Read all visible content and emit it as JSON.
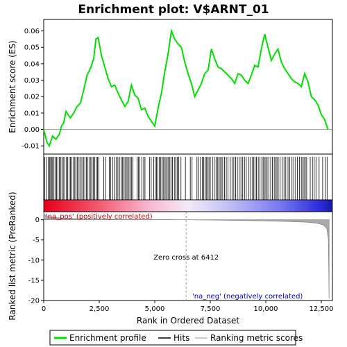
{
  "chart_data": {
    "type": "line",
    "title": "Enrichment plot: V$ARNT_01",
    "top_panel": {
      "ylabel": "Enrichment score (ES)",
      "ylim": [
        -0.015,
        0.067
      ],
      "yticks": [
        "-0.01",
        "0.00",
        "0.01",
        "0.02",
        "0.03",
        "0.04",
        "0.05",
        "0.06"
      ],
      "ytick_values": [
        -0.01,
        0.0,
        0.01,
        0.02,
        0.03,
        0.04,
        0.05,
        0.06
      ],
      "series": [
        {
          "name": "Enrichment profile",
          "color": "#00dd00",
          "x": [
            0,
            150,
            250,
            400,
            550,
            700,
            800,
            900,
            1000,
            1200,
            1350,
            1500,
            1650,
            1800,
            1950,
            2100,
            2250,
            2350,
            2450,
            2600,
            2750,
            2900,
            3050,
            3200,
            3350,
            3500,
            3650,
            3800,
            3950,
            4100,
            4250,
            4400,
            4550,
            4700,
            4850,
            5000,
            5150,
            5300,
            5450,
            5600,
            5750,
            5900,
            6050,
            6200,
            6350,
            6500,
            6650,
            6800,
            6950,
            7100,
            7250,
            7400,
            7550,
            7700,
            7850,
            8000,
            8150,
            8300,
            8450,
            8600,
            8750,
            8900,
            9050,
            9200,
            9350,
            9500,
            9650,
            9800,
            9950,
            10100,
            10250,
            10400,
            10550,
            10700,
            10850,
            11000,
            11150,
            11300,
            11450,
            11600,
            11750,
            11900,
            12050,
            12200,
            12350,
            12500,
            12650,
            12800
          ],
          "y": [
            0.0,
            -0.008,
            -0.01,
            -0.004,
            -0.006,
            -0.003,
            0.002,
            0.004,
            0.011,
            0.007,
            0.01,
            0.014,
            0.016,
            0.024,
            0.033,
            0.037,
            0.043,
            0.055,
            0.056,
            0.045,
            0.038,
            0.031,
            0.026,
            0.027,
            0.022,
            0.018,
            0.014,
            0.017,
            0.027,
            0.021,
            0.019,
            0.012,
            0.013,
            0.008,
            0.005,
            0.002,
            0.013,
            0.022,
            0.035,
            0.046,
            0.06,
            0.055,
            0.052,
            0.05,
            0.041,
            0.034,
            0.028,
            0.02,
            0.024,
            0.028,
            0.034,
            0.036,
            0.049,
            0.043,
            0.038,
            0.037,
            0.035,
            0.033,
            0.031,
            0.028,
            0.034,
            0.033,
            0.03,
            0.028,
            0.033,
            0.039,
            0.038,
            0.049,
            0.058,
            0.05,
            0.042,
            0.046,
            0.049,
            0.041,
            0.037,
            0.034,
            0.031,
            0.029,
            0.028,
            0.026,
            0.034,
            0.029,
            0.02,
            0.018,
            0.015,
            0.009,
            0.006,
            0.0
          ]
        }
      ]
    },
    "hits_panel": {
      "hit_positions": [
        40,
        120,
        200,
        260,
        310,
        350,
        400,
        460,
        520,
        580,
        640,
        700,
        760,
        820,
        880,
        950,
        1020,
        1080,
        1140,
        1200,
        1270,
        1340,
        1400,
        1460,
        1520,
        1590,
        1660,
        1720,
        1790,
        1850,
        1920,
        1990,
        2060,
        2120,
        2180,
        2240,
        2300,
        2360,
        2420,
        2480,
        2700,
        2780,
        2950,
        3020,
        3100,
        3170,
        3260,
        3340,
        3410,
        3480,
        3540,
        3600,
        3660,
        3720,
        3780,
        3840,
        3900,
        3960,
        4020,
        4200,
        4260,
        4320,
        4420,
        4500,
        4560,
        4760,
        4840,
        4950,
        5020,
        5080,
        5140,
        5200,
        5260,
        5320,
        5380,
        5440,
        5500,
        5560,
        5620,
        5680,
        5740,
        5800,
        5900,
        5960,
        6020,
        6080,
        6180,
        6380,
        6600,
        6680,
        6900,
        6980,
        7060,
        7140,
        7200,
        7260,
        7320,
        7380,
        7440,
        7500,
        7600,
        7680,
        7760,
        7820,
        7880,
        7940,
        8000,
        8060,
        8140,
        8220,
        8300,
        8400,
        8480,
        8560,
        8640,
        8720,
        8800,
        8880,
        8960,
        9040,
        9120,
        9240,
        9320,
        9400,
        9460,
        9520,
        9580,
        9660,
        9740,
        9820,
        9880,
        9940,
        10000,
        10060,
        10140,
        10220,
        10300,
        10380,
        10440,
        10500,
        10560,
        10640,
        10740,
        10820,
        10900,
        11000,
        11080,
        11180,
        11260,
        11340,
        11420,
        11520,
        11600,
        11660,
        11720,
        11780,
        11840,
        12000,
        12100,
        12180,
        12260,
        12400,
        12560,
        12680,
        12760
      ]
    },
    "metric_panel": {
      "ylabel": "Ranked list metric (PreRanked)",
      "xlabel": "Rank in Ordered Dataset",
      "ylim": [
        -20,
        2
      ],
      "yticks": [
        "0",
        "-5",
        "-10",
        "-15",
        "-20"
      ],
      "ytick_values": [
        0,
        -5,
        -10,
        -15,
        -20
      ],
      "xlim": [
        0,
        13000
      ],
      "xticks": [
        "0",
        "2,500",
        "5,000",
        "7,500",
        "10,000",
        "12,500"
      ],
      "xtick_values": [
        0,
        2500,
        5000,
        7500,
        10000,
        12500
      ],
      "metric_x": [
        0,
        50,
        150,
        300,
        600,
        1000,
        2000,
        3000,
        4500,
        6000,
        6412,
        7000,
        8000,
        9000,
        10000,
        11000,
        11800,
        12300,
        12600,
        12750,
        12820,
        12850
      ],
      "metric_y": [
        1.8,
        1.2,
        0.9,
        0.7,
        0.5,
        0.35,
        0.2,
        0.12,
        0.06,
        0.02,
        0.0,
        -0.04,
        -0.1,
        -0.18,
        -0.28,
        -0.42,
        -0.6,
        -0.85,
        -1.3,
        -2.2,
        -5.0,
        -19.5
      ],
      "zero_cross_label": "Zero cross at 6412",
      "zero_cross_x": 6412,
      "pos_label": "'na_pos' (positively correlated)",
      "neg_label": "'na_neg' (negatively correlated)",
      "pos_color": "#cc0000",
      "neg_color": "#0000cc"
    },
    "legend": {
      "items": [
        {
          "label": "Enrichment profile",
          "color": "#00dd00"
        },
        {
          "label": "Hits",
          "color": "#000000"
        },
        {
          "label": "Ranking metric scores",
          "color": "#bbbbbb"
        }
      ]
    }
  }
}
